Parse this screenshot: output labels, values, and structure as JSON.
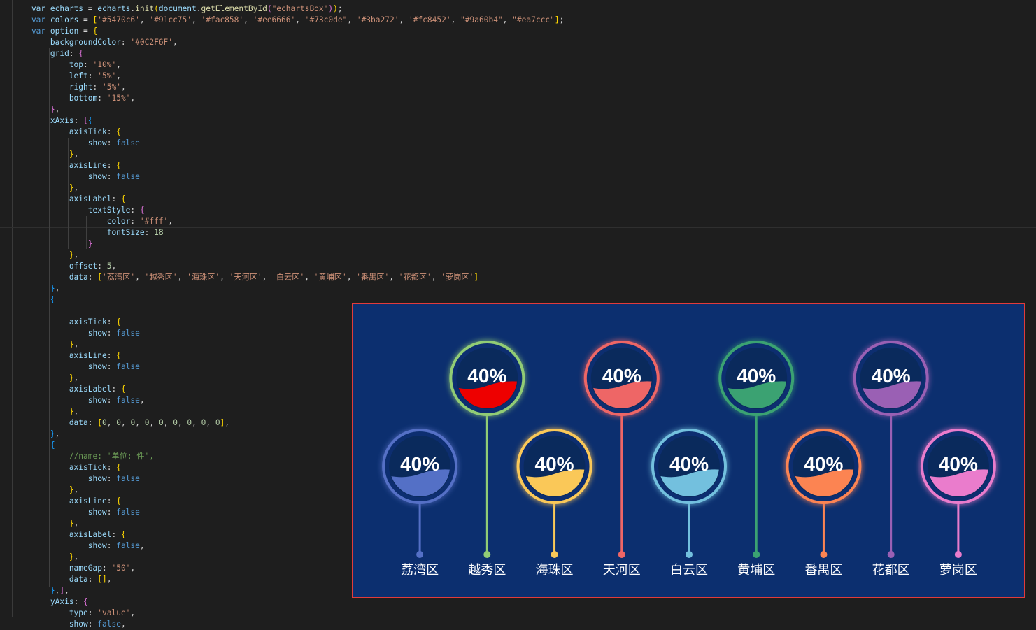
{
  "editor": {
    "lines": [
      [
        [
          "var",
          "    var "
        ],
        [
          "var",
          "echarts"
        ],
        [
          "punc",
          " = "
        ],
        [
          "var",
          "echarts"
        ],
        [
          "punc",
          "."
        ],
        [
          "fn",
          "init"
        ],
        [
          "br1",
          "("
        ],
        [
          "var",
          "document"
        ],
        [
          "punc",
          "."
        ],
        [
          "fn",
          "getElementById"
        ],
        [
          "br2",
          "("
        ],
        [
          "str",
          "\"echartsBox\""
        ],
        [
          "br2",
          ")"
        ],
        [
          "br1",
          ")"
        ],
        [
          "punc",
          ";"
        ]
      ],
      [
        [
          "kw",
          "    var "
        ],
        [
          "var",
          "colors"
        ],
        [
          "punc",
          " = "
        ],
        [
          "br1",
          "["
        ],
        [
          "str",
          "'#5470c6'"
        ],
        [
          "punc",
          ", "
        ],
        [
          "str",
          "'#91cc75'"
        ],
        [
          "punc",
          ", "
        ],
        [
          "str",
          "'#fac858'"
        ],
        [
          "punc",
          ", "
        ],
        [
          "str",
          "'#ee6666'"
        ],
        [
          "punc",
          ", "
        ],
        [
          "str",
          "\"#73c0de\""
        ],
        [
          "punc",
          ", "
        ],
        [
          "str",
          "'#3ba272'"
        ],
        [
          "punc",
          ", "
        ],
        [
          "str",
          "'#fc8452'"
        ],
        [
          "punc",
          ", "
        ],
        [
          "str",
          "\"#9a60b4\""
        ],
        [
          "punc",
          ", "
        ],
        [
          "str",
          "\"#ea7ccc\""
        ],
        [
          "br1",
          "]"
        ],
        [
          "punc",
          ";"
        ]
      ],
      [
        [
          "kw",
          "    var "
        ],
        [
          "var",
          "option"
        ],
        [
          "punc",
          " = "
        ],
        [
          "br1",
          "{"
        ]
      ],
      [
        [
          "var",
          "        backgroundColor"
        ],
        [
          "punc",
          ": "
        ],
        [
          "str",
          "'#0C2F6F'"
        ],
        [
          "punc",
          ","
        ]
      ],
      [
        [
          "var",
          "        grid"
        ],
        [
          "punc",
          ": "
        ],
        [
          "br2",
          "{"
        ]
      ],
      [
        [
          "var",
          "            top"
        ],
        [
          "punc",
          ": "
        ],
        [
          "str",
          "'10%'"
        ],
        [
          "punc",
          ","
        ]
      ],
      [
        [
          "var",
          "            left"
        ],
        [
          "punc",
          ": "
        ],
        [
          "str",
          "'5%'"
        ],
        [
          "punc",
          ","
        ]
      ],
      [
        [
          "var",
          "            right"
        ],
        [
          "punc",
          ": "
        ],
        [
          "str",
          "'5%'"
        ],
        [
          "punc",
          ","
        ]
      ],
      [
        [
          "var",
          "            bottom"
        ],
        [
          "punc",
          ": "
        ],
        [
          "str",
          "'15%'"
        ],
        [
          "punc",
          ","
        ]
      ],
      [
        [
          "br2",
          "        }"
        ],
        [
          "punc",
          ","
        ]
      ],
      [
        [
          "var",
          "        xAxis"
        ],
        [
          "punc",
          ": "
        ],
        [
          "br2",
          "["
        ],
        [
          "br3",
          "{"
        ]
      ],
      [
        [
          "var",
          "            axisTick"
        ],
        [
          "punc",
          ": "
        ],
        [
          "br1",
          "{"
        ]
      ],
      [
        [
          "var",
          "                show"
        ],
        [
          "punc",
          ": "
        ],
        [
          "bool",
          "false"
        ]
      ],
      [
        [
          "br1",
          "            }"
        ],
        [
          "punc",
          ","
        ]
      ],
      [
        [
          "var",
          "            axisLine"
        ],
        [
          "punc",
          ": "
        ],
        [
          "br1",
          "{"
        ]
      ],
      [
        [
          "var",
          "                show"
        ],
        [
          "punc",
          ": "
        ],
        [
          "bool",
          "false"
        ]
      ],
      [
        [
          "br1",
          "            }"
        ],
        [
          "punc",
          ","
        ]
      ],
      [
        [
          "var",
          "            axisLabel"
        ],
        [
          "punc",
          ": "
        ],
        [
          "br1",
          "{"
        ]
      ],
      [
        [
          "var",
          "                textStyle"
        ],
        [
          "punc",
          ": "
        ],
        [
          "br2",
          "{"
        ]
      ],
      [
        [
          "var",
          "                    color"
        ],
        [
          "punc",
          ": "
        ],
        [
          "str",
          "'#fff'"
        ],
        [
          "punc",
          ","
        ]
      ],
      [
        [
          "var",
          "                    fontSize"
        ],
        [
          "punc",
          ": "
        ],
        [
          "num",
          "18"
        ]
      ],
      [
        [
          "br2",
          "                }"
        ]
      ],
      [
        [
          "br1",
          "            }"
        ],
        [
          "punc",
          ","
        ]
      ],
      [
        [
          "var",
          "            offset"
        ],
        [
          "punc",
          ": "
        ],
        [
          "num",
          "5"
        ],
        [
          "punc",
          ","
        ]
      ],
      [
        [
          "var",
          "            data"
        ],
        [
          "punc",
          ": "
        ],
        [
          "br1",
          "["
        ],
        [
          "str",
          "'荔湾区'"
        ],
        [
          "punc",
          ", "
        ],
        [
          "str",
          "'越秀区'"
        ],
        [
          "punc",
          ", "
        ],
        [
          "str",
          "'海珠区'"
        ],
        [
          "punc",
          ", "
        ],
        [
          "str",
          "'天河区'"
        ],
        [
          "punc",
          ", "
        ],
        [
          "str",
          "'白云区'"
        ],
        [
          "punc",
          ", "
        ],
        [
          "str",
          "'黄埔区'"
        ],
        [
          "punc",
          ", "
        ],
        [
          "str",
          "'番禺区'"
        ],
        [
          "punc",
          ", "
        ],
        [
          "str",
          "'花都区'"
        ],
        [
          "punc",
          ", "
        ],
        [
          "str",
          "'萝岗区'"
        ],
        [
          "br1",
          "]"
        ]
      ],
      [
        [
          "br3",
          "        }"
        ],
        [
          "punc",
          ","
        ]
      ],
      [
        [
          "br3",
          "        {"
        ]
      ],
      [],
      [
        [
          "var",
          "            axisTick"
        ],
        [
          "punc",
          ": "
        ],
        [
          "br1",
          "{"
        ]
      ],
      [
        [
          "var",
          "                show"
        ],
        [
          "punc",
          ": "
        ],
        [
          "bool",
          "false"
        ]
      ],
      [
        [
          "br1",
          "            }"
        ],
        [
          "punc",
          ","
        ]
      ],
      [
        [
          "var",
          "            axisLine"
        ],
        [
          "punc",
          ": "
        ],
        [
          "br1",
          "{"
        ]
      ],
      [
        [
          "var",
          "                show"
        ],
        [
          "punc",
          ": "
        ],
        [
          "bool",
          "false"
        ]
      ],
      [
        [
          "br1",
          "            }"
        ],
        [
          "punc",
          ","
        ]
      ],
      [
        [
          "var",
          "            axisLabel"
        ],
        [
          "punc",
          ": "
        ],
        [
          "br1",
          "{"
        ]
      ],
      [
        [
          "var",
          "                show"
        ],
        [
          "punc",
          ": "
        ],
        [
          "bool",
          "false"
        ],
        [
          "punc",
          ","
        ]
      ],
      [
        [
          "br1",
          "            }"
        ],
        [
          "punc",
          ","
        ]
      ],
      [
        [
          "var",
          "            data"
        ],
        [
          "punc",
          ": "
        ],
        [
          "br1",
          "["
        ],
        [
          "num",
          "0"
        ],
        [
          "punc",
          ", "
        ],
        [
          "num",
          "0"
        ],
        [
          "punc",
          ", "
        ],
        [
          "num",
          "0"
        ],
        [
          "punc",
          ", "
        ],
        [
          "num",
          "0"
        ],
        [
          "punc",
          ", "
        ],
        [
          "num",
          "0"
        ],
        [
          "punc",
          ", "
        ],
        [
          "num",
          "0"
        ],
        [
          "punc",
          ", "
        ],
        [
          "num",
          "0"
        ],
        [
          "punc",
          ", "
        ],
        [
          "num",
          "0"
        ],
        [
          "punc",
          ", "
        ],
        [
          "num",
          "0"
        ],
        [
          "br1",
          "]"
        ],
        [
          "punc",
          ","
        ]
      ],
      [
        [
          "br3",
          "        }"
        ],
        [
          "punc",
          ","
        ]
      ],
      [
        [
          "br3",
          "        {"
        ]
      ],
      [
        [
          "cmt",
          "            //name: '单位: 件',"
        ]
      ],
      [
        [
          "var",
          "            axisTick"
        ],
        [
          "punc",
          ": "
        ],
        [
          "br1",
          "{"
        ]
      ],
      [
        [
          "var",
          "                show"
        ],
        [
          "punc",
          ": "
        ],
        [
          "bool",
          "false"
        ]
      ],
      [
        [
          "br1",
          "            }"
        ],
        [
          "punc",
          ","
        ]
      ],
      [
        [
          "var",
          "            axisLine"
        ],
        [
          "punc",
          ": "
        ],
        [
          "br1",
          "{"
        ]
      ],
      [
        [
          "var",
          "                show"
        ],
        [
          "punc",
          ": "
        ],
        [
          "bool",
          "false"
        ]
      ],
      [
        [
          "br1",
          "            }"
        ],
        [
          "punc",
          ","
        ]
      ],
      [
        [
          "var",
          "            axisLabel"
        ],
        [
          "punc",
          ": "
        ],
        [
          "br1",
          "{"
        ]
      ],
      [
        [
          "var",
          "                show"
        ],
        [
          "punc",
          ": "
        ],
        [
          "bool",
          "false"
        ],
        [
          "punc",
          ","
        ]
      ],
      [
        [
          "br1",
          "            }"
        ],
        [
          "punc",
          ","
        ]
      ],
      [
        [
          "var",
          "            nameGap"
        ],
        [
          "punc",
          ": "
        ],
        [
          "str",
          "'50'"
        ],
        [
          "punc",
          ","
        ]
      ],
      [
        [
          "var",
          "            data"
        ],
        [
          "punc",
          ": "
        ],
        [
          "br1",
          "[]"
        ],
        [
          "punc",
          ","
        ]
      ],
      [
        [
          "br3",
          "        }"
        ],
        [
          "punc",
          ","
        ],
        [
          "br2",
          "]"
        ],
        [
          "punc",
          ","
        ]
      ],
      [
        [
          "var",
          "        yAxis"
        ],
        [
          "punc",
          ": "
        ],
        [
          "br2",
          "{"
        ]
      ],
      [
        [
          "var",
          "            type"
        ],
        [
          "punc",
          ": "
        ],
        [
          "str",
          "'value'"
        ],
        [
          "punc",
          ","
        ]
      ],
      [
        [
          "var",
          "            show"
        ],
        [
          "punc",
          ": "
        ],
        [
          "bool",
          "false"
        ],
        [
          "punc",
          ","
        ]
      ]
    ]
  },
  "chart": {
    "background": "#0c2f6f",
    "border_color": "#e23b3b",
    "percent_text": "40%",
    "districts": [
      {
        "name": "荔湾区",
        "color": "#5470c6",
        "percent": 40,
        "row": "low"
      },
      {
        "name": "越秀区",
        "color": "#91cc75",
        "percent": 40,
        "row": "high",
        "fill": "#ee0000"
      },
      {
        "name": "海珠区",
        "color": "#fac858",
        "percent": 40,
        "row": "low"
      },
      {
        "name": "天河区",
        "color": "#ee6666",
        "percent": 40,
        "row": "high"
      },
      {
        "name": "白云区",
        "color": "#73c0de",
        "percent": 40,
        "row": "low"
      },
      {
        "name": "黄埔区",
        "color": "#3ba272",
        "percent": 40,
        "row": "high"
      },
      {
        "name": "番禺区",
        "color": "#fc8452",
        "percent": 40,
        "row": "low"
      },
      {
        "name": "花都区",
        "color": "#9a60b4",
        "percent": 40,
        "row": "high"
      },
      {
        "name": "萝岗区",
        "color": "#ea7ccc",
        "percent": 40,
        "row": "low"
      }
    ]
  }
}
